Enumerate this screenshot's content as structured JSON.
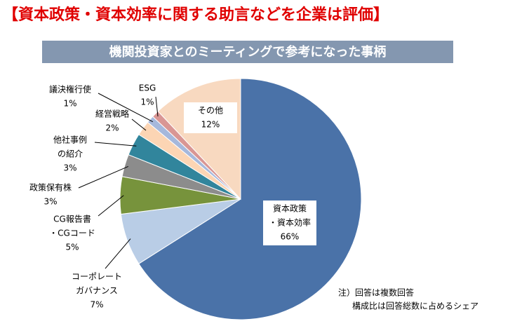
{
  "chart_data": {
    "type": "pie",
    "title": "【資本政策・資本効率に関する助言などを企業は評価】",
    "subtitle": "機関投資家とのミーティングで参考になった事柄",
    "labels": [
      [
        "資本政策",
        "・資本効率"
      ],
      [
        "コーポレート",
        "ガバナンス"
      ],
      [
        "CG報告書",
        "・CGコード"
      ],
      [
        "政策保有株"
      ],
      [
        "他社事例",
        "の紹介"
      ],
      [
        "経営戦略"
      ],
      [
        "議決権行使"
      ],
      [
        "ESG"
      ],
      [
        "その他"
      ]
    ],
    "values": [
      66,
      7,
      5,
      3,
      3,
      2,
      1,
      1,
      12
    ],
    "value_labels": [
      "66%",
      "7%",
      "5%",
      "3%",
      "3%",
      "2%",
      "1%",
      "1%",
      "12%"
    ],
    "colors": [
      "#4a72a8",
      "#b9cde6",
      "#77933c",
      "#8c8c8c",
      "#31859c",
      "#fcd5b4",
      "#a6b8dc",
      "#d99694",
      "#f8d9c0"
    ],
    "notes": [
      "注）回答は複数回答",
      "構成比は回答総数に占めるシェア"
    ]
  }
}
